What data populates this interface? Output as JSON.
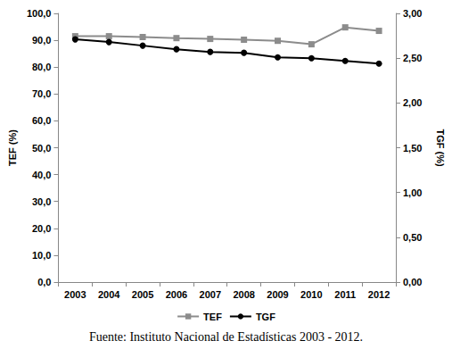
{
  "chart_data": {
    "type": "line",
    "caption": "Fuente: Instituto Nacional de Estadísticas 2003 - 2012.",
    "y_label": "TEF (%)",
    "y2_label": "TGF (%)",
    "categories": [
      "2003",
      "2004",
      "2005",
      "2006",
      "2007",
      "2008",
      "2009",
      "2010",
      "2011",
      "2012"
    ],
    "series": [
      {
        "name": "TEF",
        "color": "#8c8c8c",
        "marker": "square",
        "values": [
          91.5,
          91.5,
          91.2,
          90.8,
          90.5,
          90.2,
          89.8,
          88.5,
          94.8,
          93.5
        ]
      },
      {
        "name": "TGF",
        "color": "#000000",
        "marker": "circle",
        "axis": "y2",
        "values": [
          2.71,
          2.68,
          2.64,
          2.6,
          2.57,
          2.56,
          2.51,
          2.5,
          2.47,
          2.44
        ]
      }
    ],
    "ylim": [
      0,
      100
    ],
    "yticks": [
      {
        "value": 0,
        "label": "0,0"
      },
      {
        "value": 10,
        "label": "10,0"
      },
      {
        "value": 20,
        "label": "20,0"
      },
      {
        "value": 30,
        "label": "30,0"
      },
      {
        "value": 40,
        "label": "40,0"
      },
      {
        "value": 50,
        "label": "50,0"
      },
      {
        "value": 60,
        "label": "60,0"
      },
      {
        "value": 70,
        "label": "70,0"
      },
      {
        "value": 80,
        "label": "80,0"
      },
      {
        "value": 90,
        "label": "90,0"
      },
      {
        "value": 100,
        "label": "100,0"
      }
    ],
    "y2lim": [
      0,
      3
    ],
    "y2ticks": [
      {
        "value": 0,
        "label": "0,00"
      },
      {
        "value": 0.5,
        "label": "0,50"
      },
      {
        "value": 1,
        "label": "1,00"
      },
      {
        "value": 1.5,
        "label": "1,50"
      },
      {
        "value": 2,
        "label": "2,00"
      },
      {
        "value": 2.5,
        "label": "2,50"
      },
      {
        "value": 3,
        "label": "3,00"
      }
    ],
    "grid": false,
    "legend": "bottom"
  }
}
